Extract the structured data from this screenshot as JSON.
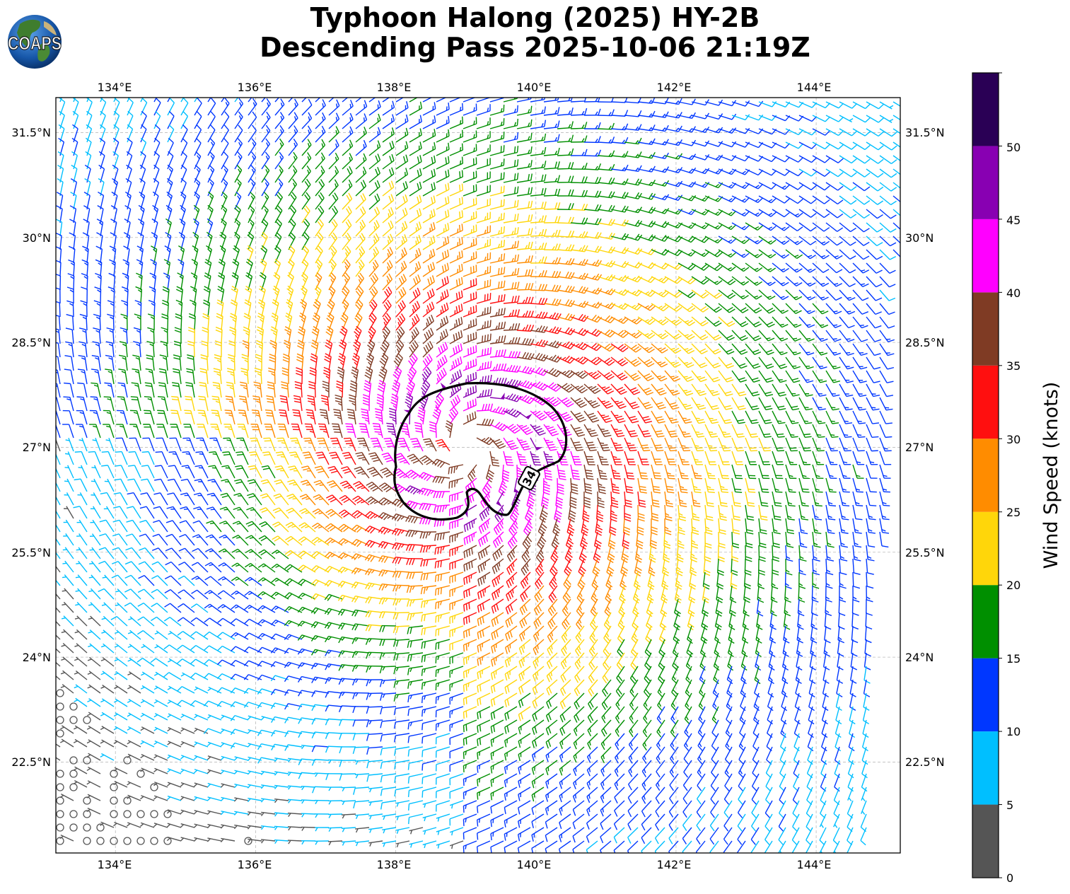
{
  "logo": {
    "text": "COAPS"
  },
  "title": {
    "line1": "Typhoon Halong (2025) HY-2B",
    "line2": "Descending Pass 2025-10-06 21:19Z"
  },
  "map": {
    "lon_range": [
      133.15,
      145.2
    ],
    "lat_range": [
      21.2,
      32.0
    ],
    "lon_ticks": [
      "134°E",
      "136°E",
      "138°E",
      "140°E",
      "142°E",
      "144°E"
    ],
    "lat_ticks": [
      "31.5°N",
      "30°N",
      "28.5°N",
      "27°N",
      "25.5°N",
      "24°N",
      "22.5°N"
    ],
    "gridlines": true,
    "storm_center": {
      "lon": 139.0,
      "lat": 27.0
    },
    "contour_label": "34",
    "swath_east_edge_lon": [
      145.2,
      144.7
    ]
  },
  "colorbar": {
    "label": "Wind Speed (knots)",
    "tick_labels": [
      "0",
      "5",
      "10",
      "15",
      "20",
      "25",
      "30",
      "35",
      "40",
      "45",
      "50"
    ],
    "bins": [
      {
        "min": 0,
        "max": 5,
        "color": "#555555"
      },
      {
        "min": 5,
        "max": 10,
        "color": "#00bfff"
      },
      {
        "min": 10,
        "max": 15,
        "color": "#0037ff"
      },
      {
        "min": 15,
        "max": 20,
        "color": "#008f00"
      },
      {
        "min": 20,
        "max": 25,
        "color": "#ffd60a"
      },
      {
        "min": 25,
        "max": 30,
        "color": "#ff8c00"
      },
      {
        "min": 30,
        "max": 35,
        "color": "#ff0f0f"
      },
      {
        "min": 35,
        "max": 40,
        "color": "#7f3b24"
      },
      {
        "min": 40,
        "max": 45,
        "color": "#ff00ff"
      },
      {
        "min": 45,
        "max": 50,
        "color": "#8800b2"
      },
      {
        "min": 50,
        "max": 55,
        "color": "#2a0055"
      }
    ]
  }
}
